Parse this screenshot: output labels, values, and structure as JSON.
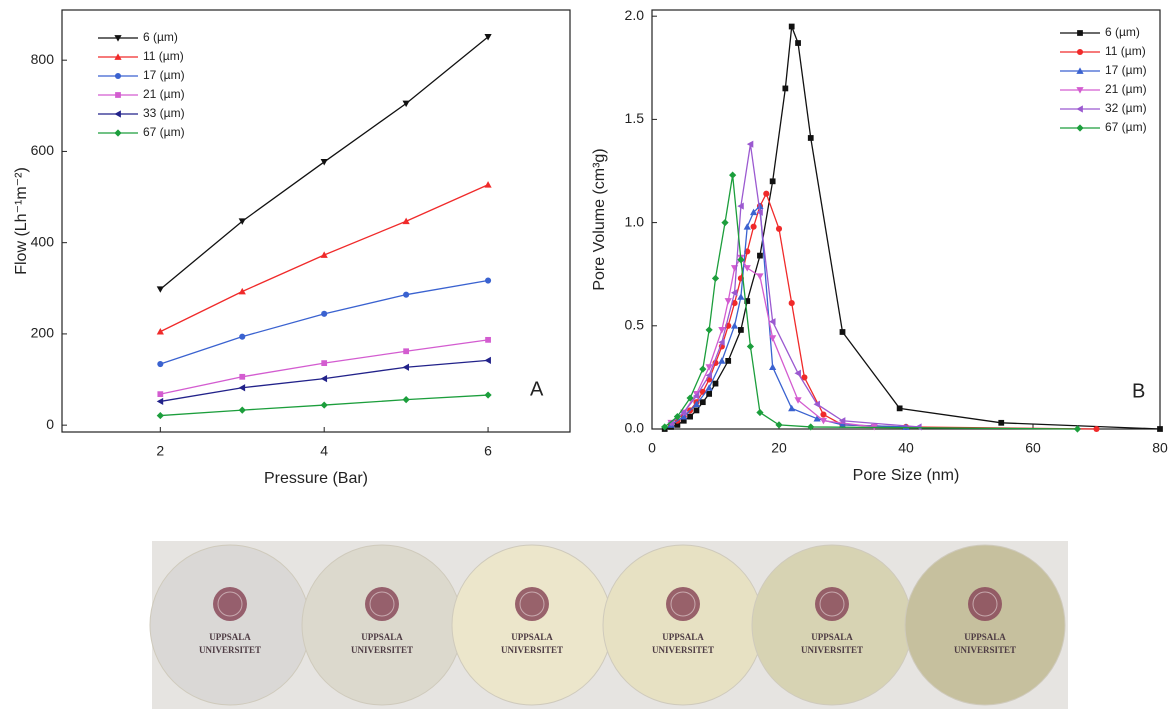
{
  "chart_data": [
    {
      "type": "line",
      "xlabel": "Pressure (Bar)",
      "ylabel": "Flow (Lh⁻¹m⁻²)",
      "annotation": "A",
      "x": [
        2,
        3,
        4,
        5,
        6
      ],
      "xlim": [
        0.8,
        7.0
      ],
      "xticks": [
        2,
        4,
        6
      ],
      "ylim": [
        -15,
        910
      ],
      "yticks": [
        0,
        200,
        400,
        600,
        800
      ],
      "legend": "upper left",
      "series": [
        {
          "name": "6 (µm)",
          "color": "#111111",
          "marker": "triangle-down",
          "values": [
            298,
            447,
            577,
            705,
            851
          ]
        },
        {
          "name": "11 (µm)",
          "color": "#f02a2a",
          "marker": "triangle-up",
          "values": [
            205,
            293,
            373,
            447,
            527
          ]
        },
        {
          "name": "17 (µm)",
          "color": "#3a62d0",
          "marker": "circle",
          "values": [
            134,
            194,
            244,
            286,
            317
          ]
        },
        {
          "name": "21 (µm)",
          "color": "#d35cd0",
          "marker": "square",
          "values": [
            68,
            106,
            136,
            162,
            187
          ]
        },
        {
          "name": "33 (µm)",
          "color": "#22228a",
          "marker": "triangle-left",
          "values": [
            52,
            82,
            102,
            127,
            142
          ]
        },
        {
          "name": "67 (µm)",
          "color": "#1c9e3c",
          "marker": "diamond",
          "values": [
            21,
            33,
            44,
            56,
            66
          ]
        }
      ]
    },
    {
      "type": "line",
      "xlabel": "Pore Size (nm)",
      "ylabel": "Pore Volume (cm³g)",
      "annotation": "B",
      "xlim": [
        0,
        80
      ],
      "xticks": [
        0,
        20,
        40,
        60,
        80
      ],
      "ylim": [
        0,
        2.03
      ],
      "yticks": [
        {
          "value": 0,
          "label": "0.0"
        },
        {
          "value": 0.5,
          "label": "0.5"
        },
        {
          "value": 1,
          "label": "1.0"
        },
        {
          "value": 1.5,
          "label": "1.5"
        },
        {
          "value": 2,
          "label": "2.0"
        }
      ],
      "legend": "upper right",
      "series": [
        {
          "name": "6 (µm)",
          "color": "#111111",
          "marker": "square",
          "x": [
            2,
            3,
            4,
            5,
            6,
            7,
            8,
            9,
            10,
            12,
            14,
            15,
            17,
            19,
            21,
            22,
            23,
            25,
            30,
            39,
            55,
            80
          ],
          "values": [
            0.0,
            0.01,
            0.02,
            0.04,
            0.06,
            0.09,
            0.13,
            0.17,
            0.22,
            0.33,
            0.48,
            0.62,
            0.84,
            1.2,
            1.65,
            1.95,
            1.87,
            1.41,
            0.47,
            0.1,
            0.03,
            0.0
          ]
        },
        {
          "name": "11 (µm)",
          "color": "#f02a2a",
          "marker": "circle",
          "x": [
            3,
            4,
            5,
            6,
            7,
            8,
            9,
            10,
            11,
            12,
            13,
            14,
            15,
            16,
            17,
            18,
            20,
            22,
            24,
            27,
            30,
            40,
            70
          ],
          "values": [
            0.02,
            0.04,
            0.06,
            0.09,
            0.13,
            0.18,
            0.24,
            0.32,
            0.4,
            0.5,
            0.61,
            0.73,
            0.86,
            0.98,
            1.08,
            1.14,
            0.97,
            0.61,
            0.25,
            0.07,
            0.02,
            0.01,
            0.0
          ]
        },
        {
          "name": "17 (µm)",
          "color": "#3a62d0",
          "marker": "triangle-up",
          "x": [
            3,
            5,
            7,
            9,
            11,
            13,
            14,
            15,
            16,
            17,
            19,
            22,
            26,
            30,
            40
          ],
          "values": [
            0.02,
            0.06,
            0.12,
            0.2,
            0.33,
            0.5,
            0.64,
            0.98,
            1.05,
            1.08,
            0.3,
            0.1,
            0.05,
            0.02,
            0.01
          ]
        },
        {
          "name": "21 (µm)",
          "color": "#d35cd0",
          "marker": "triangle-down",
          "x": [
            3,
            5,
            7,
            9,
            11,
            12,
            13,
            14,
            15,
            17,
            19,
            23,
            27,
            35
          ],
          "values": [
            0.03,
            0.08,
            0.17,
            0.3,
            0.48,
            0.62,
            0.78,
            0.83,
            0.78,
            0.74,
            0.44,
            0.14,
            0.04,
            0.01
          ]
        },
        {
          "name": "32 (µm)",
          "color": "#9b59d0",
          "marker": "triangle-left",
          "x": [
            3,
            5,
            7,
            9,
            11,
            13,
            14,
            15.5,
            17,
            19,
            23,
            26,
            30,
            42
          ],
          "values": [
            0.03,
            0.08,
            0.16,
            0.26,
            0.42,
            0.66,
            1.08,
            1.38,
            1.05,
            0.52,
            0.27,
            0.12,
            0.04,
            0.01
          ]
        },
        {
          "name": "67 (µm)",
          "color": "#1c9e3c",
          "marker": "diamond",
          "x": [
            2,
            4,
            6,
            8,
            9,
            10,
            11.5,
            12.7,
            14,
            15.5,
            17,
            20,
            25,
            67
          ],
          "values": [
            0.01,
            0.06,
            0.15,
            0.29,
            0.48,
            0.73,
            1.0,
            1.23,
            0.82,
            0.4,
            0.08,
            0.02,
            0.01,
            0.0
          ]
        }
      ]
    }
  ],
  "photo": {
    "discs": [
      [
        "UPPSALA",
        "UNIVERSITET"
      ],
      [
        "UPPSALA",
        "UNIVERSITET"
      ],
      [
        "UPPSALA",
        "UNIVERSITET"
      ],
      [
        "UPPSALA",
        "UNIVERSITET"
      ],
      [
        "UPPSALA",
        "UNIVERSITET"
      ],
      [
        "UPPSALA",
        "UNIVERSITET"
      ]
    ]
  }
}
